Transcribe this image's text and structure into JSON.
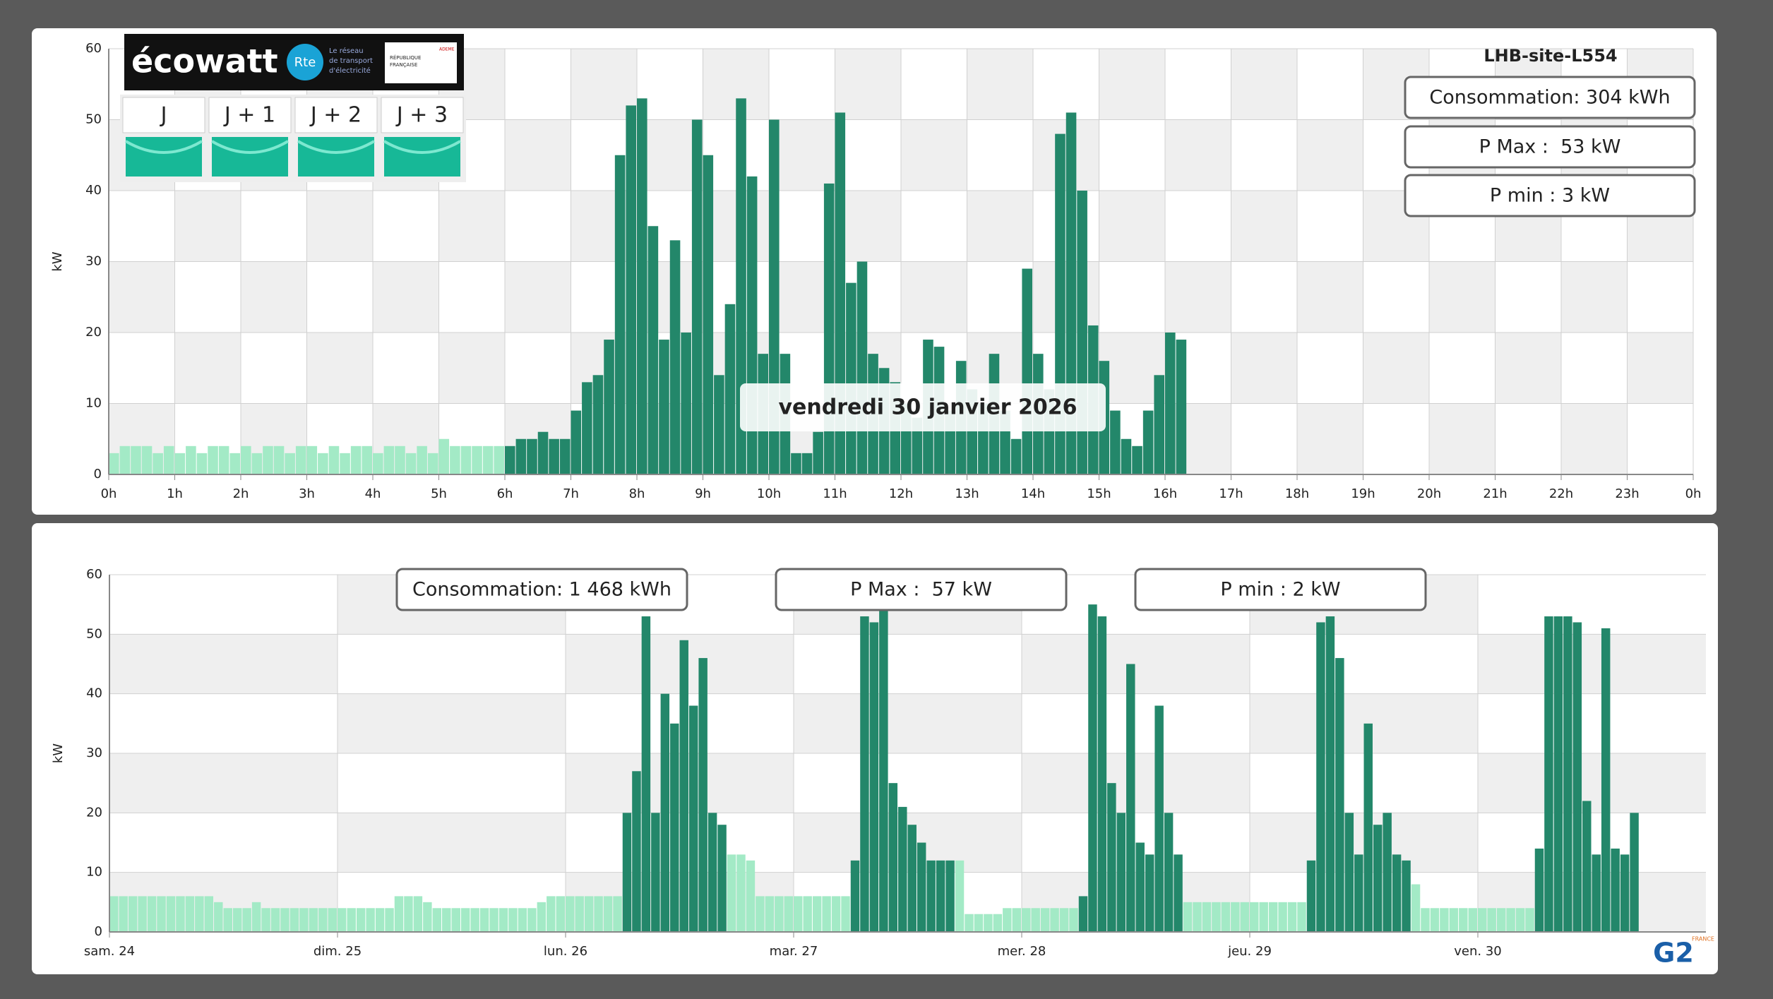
{
  "chart_data": [
    {
      "type": "bar",
      "title": "LHB-site-L554",
      "date_label": "vendredi 30 janvier 2026",
      "stats": [
        "Consommation: 304 kWh",
        "P Max :  53 kW",
        "P min : 3 kW"
      ],
      "ylabel": "kW",
      "grid": true,
      "xlim": [
        0,
        1440
      ],
      "xticks": [
        {
          "value": 0,
          "label": "0h"
        },
        {
          "value": 60,
          "label": "1h"
        },
        {
          "value": 120,
          "label": "2h"
        },
        {
          "value": 180,
          "label": "3h"
        },
        {
          "value": 240,
          "label": "4h"
        },
        {
          "value": 300,
          "label": "5h"
        },
        {
          "value": 360,
          "label": "6h"
        },
        {
          "value": 420,
          "label": "7h"
        },
        {
          "value": 480,
          "label": "8h"
        },
        {
          "value": 540,
          "label": "9h"
        },
        {
          "value": 600,
          "label": "10h"
        },
        {
          "value": 660,
          "label": "11h"
        },
        {
          "value": 720,
          "label": "12h"
        },
        {
          "value": 780,
          "label": "13h"
        },
        {
          "value": 840,
          "label": "14h"
        },
        {
          "value": 900,
          "label": "15h"
        },
        {
          "value": 960,
          "label": "16h"
        },
        {
          "value": 1020,
          "label": "17h"
        },
        {
          "value": 1080,
          "label": "18h"
        },
        {
          "value": 1140,
          "label": "19h"
        },
        {
          "value": 1200,
          "label": "20h"
        },
        {
          "value": 1260,
          "label": "21h"
        },
        {
          "value": 1320,
          "label": "22h"
        },
        {
          "value": 1380,
          "label": "23h"
        },
        {
          "value": 1440,
          "label": "0h"
        }
      ],
      "ylim": [
        0,
        60
      ],
      "yticks": [
        0,
        10,
        20,
        30,
        40,
        50,
        60
      ],
      "series": [
        {
          "color": "#a3eac6",
          "x": [
            0,
            10,
            20,
            30,
            40,
            50,
            60,
            70,
            80,
            90,
            100,
            110,
            120,
            130,
            140,
            150,
            160,
            170,
            180,
            190,
            200,
            210,
            220,
            230,
            240,
            250,
            260,
            270,
            280,
            290,
            300,
            310,
            320,
            330,
            340,
            350
          ],
          "values": [
            3,
            4,
            4,
            4,
            3,
            4,
            3,
            4,
            3,
            4,
            4,
            3,
            4,
            3,
            4,
            4,
            3,
            4,
            4,
            3,
            4,
            3,
            4,
            4,
            3,
            4,
            4,
            3,
            4,
            3,
            5,
            4,
            4,
            4,
            4,
            4
          ]
        },
        {
          "color": "#23876a",
          "x": [
            360,
            370,
            380,
            390,
            400,
            410,
            420,
            430,
            440,
            450,
            460,
            470,
            480,
            490,
            500,
            510,
            520,
            530,
            540,
            550,
            560,
            570,
            580,
            590,
            600,
            610,
            620,
            630,
            640,
            650,
            660,
            670,
            680,
            690,
            700,
            710,
            720,
            730,
            740,
            750,
            760,
            770,
            780,
            790,
            800,
            810,
            820,
            830,
            840,
            850,
            860,
            870,
            880,
            890,
            900,
            910,
            920,
            930,
            940,
            950,
            960,
            970
          ],
          "values": [
            4,
            5,
            5,
            6,
            5,
            5,
            9,
            13,
            14,
            19,
            45,
            52,
            53,
            35,
            19,
            33,
            20,
            50,
            45,
            14,
            24,
            53,
            42,
            17,
            50,
            17,
            3,
            3,
            6,
            41,
            51,
            27,
            30,
            17,
            15,
            13,
            10,
            8,
            19,
            18,
            9,
            16,
            12,
            10,
            17,
            9,
            5,
            29,
            17,
            12,
            48,
            51,
            40,
            21,
            16,
            9,
            5,
            4,
            9,
            14,
            20,
            19
          ]
        }
      ]
    },
    {
      "type": "bar",
      "stats": [
        "Consommation: 1 468 kWh",
        "P Max :  57 kW",
        "P min : 2 kW"
      ],
      "ylabel": "kW",
      "grid": true,
      "xlim": [
        0,
        168
      ],
      "xticks": [
        {
          "value": 0,
          "label": "sam. 24"
        },
        {
          "value": 24,
          "label": "dim. 25"
        },
        {
          "value": 48,
          "label": "lun. 26"
        },
        {
          "value": 72,
          "label": "mar. 27"
        },
        {
          "value": 96,
          "label": "mer. 28"
        },
        {
          "value": 120,
          "label": "jeu. 29"
        },
        {
          "value": 144,
          "label": "ven. 30"
        }
      ],
      "ylim": [
        0,
        60
      ],
      "yticks": [
        0,
        10,
        20,
        30,
        40,
        50,
        60
      ],
      "series": [
        {
          "color": "#a3eac6",
          "x": [
            0,
            1,
            2,
            3,
            4,
            5,
            6,
            7,
            8,
            9,
            10,
            11,
            12,
            13,
            14,
            15,
            16,
            17,
            18,
            19,
            20,
            21,
            22,
            23,
            24,
            25,
            26,
            27,
            28,
            29,
            30,
            31,
            32,
            33,
            34,
            35,
            36,
            37,
            38,
            39,
            40,
            41,
            42,
            43,
            44,
            45,
            46,
            47,
            48,
            49,
            50,
            51,
            52,
            53,
            65,
            66,
            67,
            68,
            69,
            70,
            71,
            72,
            73,
            74,
            75,
            76,
            77,
            89,
            90,
            91,
            92,
            93,
            94,
            95,
            96,
            97,
            98,
            99,
            100,
            101,
            113,
            114,
            115,
            116,
            117,
            118,
            119,
            120,
            121,
            122,
            123,
            124,
            125,
            137,
            138,
            139,
            140,
            141,
            142,
            143,
            144,
            145,
            146,
            147,
            148,
            149
          ],
          "values": [
            6,
            6,
            6,
            6,
            6,
            6,
            6,
            6,
            6,
            6,
            6,
            5,
            4,
            4,
            4,
            5,
            4,
            4,
            4,
            4,
            4,
            4,
            4,
            4,
            4,
            4,
            4,
            4,
            4,
            4,
            6,
            6,
            6,
            5,
            4,
            4,
            4,
            4,
            4,
            4,
            4,
            4,
            4,
            4,
            4,
            5,
            6,
            6,
            6,
            6,
            6,
            6,
            6,
            6,
            13,
            13,
            12,
            6,
            6,
            6,
            6,
            6,
            6,
            6,
            6,
            6,
            6,
            12,
            3,
            3,
            3,
            3,
            4,
            4,
            4,
            4,
            4,
            4,
            4,
            4,
            5,
            5,
            5,
            5,
            5,
            5,
            5,
            5,
            5,
            5,
            5,
            5,
            5,
            8,
            4,
            4,
            4,
            4,
            4,
            4,
            4,
            4,
            4,
            4,
            4,
            4
          ]
        },
        {
          "color": "#23876a",
          "x": [
            54,
            55,
            56,
            57,
            58,
            59,
            60,
            61,
            62,
            63,
            64,
            78,
            79,
            80,
            81,
            82,
            83,
            84,
            85,
            86,
            87,
            88,
            102,
            103,
            104,
            105,
            106,
            107,
            108,
            109,
            110,
            111,
            112,
            126,
            127,
            128,
            129,
            130,
            131,
            132,
            133,
            134,
            135,
            136,
            150,
            151,
            152,
            153,
            154,
            155,
            156,
            157,
            158,
            159,
            160
          ],
          "values": [
            20,
            27,
            53,
            20,
            40,
            35,
            49,
            38,
            46,
            20,
            18,
            12,
            53,
            52,
            57,
            25,
            21,
            18,
            15,
            12,
            12,
            12,
            6,
            55,
            53,
            25,
            20,
            45,
            15,
            13,
            38,
            20,
            13,
            12,
            52,
            53,
            46,
            20,
            13,
            35,
            18,
            20,
            13,
            12,
            14,
            53,
            53,
            53,
            52,
            22,
            13,
            51,
            14,
            13,
            20
          ]
        }
      ]
    }
  ],
  "ecowatt": {
    "brand": "écowatt",
    "rte": "Rte",
    "rte_tagline": [
      "Le réseau",
      "de transport",
      "d'électricité"
    ],
    "gov": [
      "RÉPUBLIQUE",
      "FRANÇAISE"
    ],
    "ademe": "ADEME",
    "days": [
      "J",
      "J + 1",
      "J + 2",
      "J + 3"
    ]
  },
  "logo": {
    "text": "G2",
    "country": "FRANCE"
  }
}
